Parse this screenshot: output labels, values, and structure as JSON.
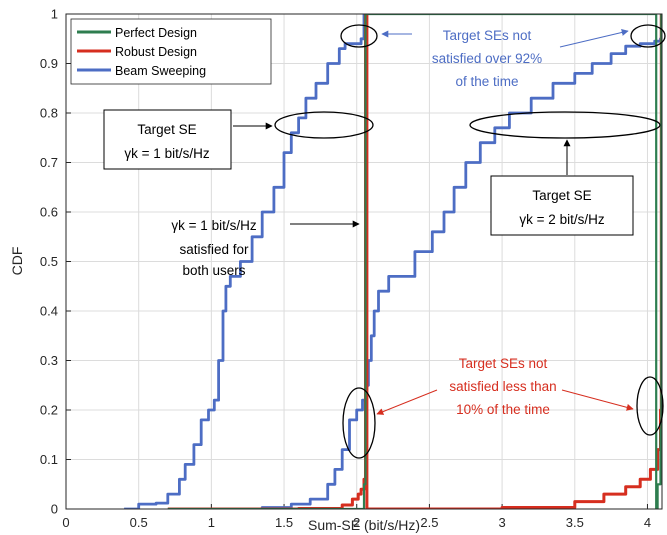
{
  "chart_data": {
    "type": "line",
    "title": "",
    "xlabel": "Sum-SE (bit/s/Hz)",
    "ylabel": "CDF",
    "xlim": [
      0,
      4.1
    ],
    "ylim": [
      0,
      1
    ],
    "xticks": [
      0,
      0.5,
      1,
      1.5,
      2,
      2.5,
      3,
      3.5,
      4
    ],
    "xtick_labels": [
      "0",
      "0.5",
      "1",
      "1.5",
      "2",
      "2.5",
      "3",
      "3.5",
      "4"
    ],
    "yticks": [
      0,
      0.1,
      0.2,
      0.3,
      0.4,
      0.5,
      0.6,
      0.7,
      0.8,
      0.9,
      1
    ],
    "ytick_labels": [
      "0",
      "0.1",
      "0.2",
      "0.3",
      "0.4",
      "0.5",
      "0.6",
      "0.7",
      "0.8",
      "0.9",
      "1"
    ],
    "grid": true,
    "legend_position": "top-left",
    "series": [
      {
        "name": "Perfect Design",
        "color": "#2e7d4f",
        "points": [
          [
            0.7,
            0
          ],
          [
            2.04,
            0
          ],
          [
            2.05,
            0.05
          ],
          [
            2.06,
            1.0
          ],
          [
            4.06,
            0
          ],
          [
            4.07,
            0.05
          ],
          [
            4.09,
            0.16
          ],
          [
            4.095,
            1.0
          ]
        ]
      },
      {
        "name": "Robust Design",
        "color": "#d62e1f",
        "points": [
          [
            0.7,
            0
          ],
          [
            1.6,
            0.001
          ],
          [
            1.9,
            0.008
          ],
          [
            1.97,
            0.02
          ],
          [
            2.01,
            0.03
          ],
          [
            2.03,
            0.04
          ],
          [
            2.05,
            0.06
          ],
          [
            2.06,
            1.0
          ],
          [
            2.07,
            0
          ],
          [
            3.0,
            0.003
          ],
          [
            3.5,
            0.015
          ],
          [
            3.7,
            0.03
          ],
          [
            3.85,
            0.045
          ],
          [
            3.95,
            0.06
          ],
          [
            4.02,
            0.08
          ],
          [
            4.07,
            0.12
          ],
          [
            4.09,
            0.2
          ],
          [
            4.095,
            1.0
          ]
        ]
      },
      {
        "name": "Beam Sweeping",
        "color": "#4d6dc4",
        "points_a": [
          [
            0.4,
            0
          ],
          [
            0.5,
            0.01
          ],
          [
            0.62,
            0.012
          ],
          [
            0.7,
            0.03
          ],
          [
            0.78,
            0.06
          ],
          [
            0.82,
            0.09
          ],
          [
            0.88,
            0.13
          ],
          [
            0.93,
            0.18
          ],
          [
            0.98,
            0.2
          ],
          [
            1.02,
            0.22
          ],
          [
            1.05,
            0.3
          ],
          [
            1.08,
            0.4
          ],
          [
            1.1,
            0.45
          ],
          [
            1.13,
            0.47
          ],
          [
            1.2,
            0.5
          ],
          [
            1.28,
            0.55
          ],
          [
            1.35,
            0.6
          ],
          [
            1.43,
            0.65
          ],
          [
            1.5,
            0.72
          ],
          [
            1.55,
            0.76
          ],
          [
            1.6,
            0.79
          ],
          [
            1.65,
            0.83
          ],
          [
            1.72,
            0.86
          ],
          [
            1.8,
            0.9
          ],
          [
            1.88,
            0.93
          ],
          [
            1.92,
            0.94
          ],
          [
            2.0,
            0.94
          ],
          [
            2.03,
            0.95
          ],
          [
            2.05,
            1.0
          ]
        ],
        "points_b": [
          [
            1.15,
            0
          ],
          [
            1.35,
            0.003
          ],
          [
            1.55,
            0.01
          ],
          [
            1.68,
            0.02
          ],
          [
            1.8,
            0.05
          ],
          [
            1.85,
            0.08
          ],
          [
            1.9,
            0.12
          ],
          [
            1.95,
            0.18
          ],
          [
            2.0,
            0.2
          ],
          [
            2.04,
            0.22
          ],
          [
            2.06,
            0.25
          ],
          [
            2.08,
            0.3
          ],
          [
            2.1,
            0.35
          ],
          [
            2.12,
            0.4
          ],
          [
            2.15,
            0.44
          ],
          [
            2.22,
            0.47
          ],
          [
            2.4,
            0.52
          ],
          [
            2.52,
            0.56
          ],
          [
            2.6,
            0.6
          ],
          [
            2.67,
            0.65
          ],
          [
            2.75,
            0.7
          ],
          [
            2.85,
            0.74
          ],
          [
            2.95,
            0.77
          ],
          [
            3.05,
            0.8
          ],
          [
            3.2,
            0.83
          ],
          [
            3.35,
            0.86
          ],
          [
            3.5,
            0.88
          ],
          [
            3.62,
            0.9
          ],
          [
            3.75,
            0.92
          ],
          [
            3.85,
            0.935
          ],
          [
            3.95,
            0.94
          ],
          [
            4.05,
            0.945
          ],
          [
            4.09,
            0.95
          ],
          [
            4.095,
            1.0
          ]
        ]
      }
    ],
    "annotations": [
      {
        "id": "top-right",
        "lines": [
          "Target SEs not",
          "satisfied over 92%",
          "of the time"
        ],
        "color": "#4d6dc4"
      },
      {
        "id": "target-1",
        "lines": [
          "Target SE",
          "γk = 1 bit/s/Hz"
        ],
        "color": "#000000",
        "boxed": true
      },
      {
        "id": "target-2",
        "lines": [
          "Target SE",
          "γk = 2 bit/s/Hz"
        ],
        "color": "#000000",
        "boxed": true
      },
      {
        "id": "both-users",
        "lines": [
          "γk = 1 bit/s/Hz",
          "satisfied for",
          "both users"
        ],
        "color": "#000000"
      },
      {
        "id": "less-10",
        "lines": [
          "Target SEs not",
          "satisfied less than",
          "10% of the time"
        ],
        "color": "#d62e1f"
      }
    ]
  }
}
